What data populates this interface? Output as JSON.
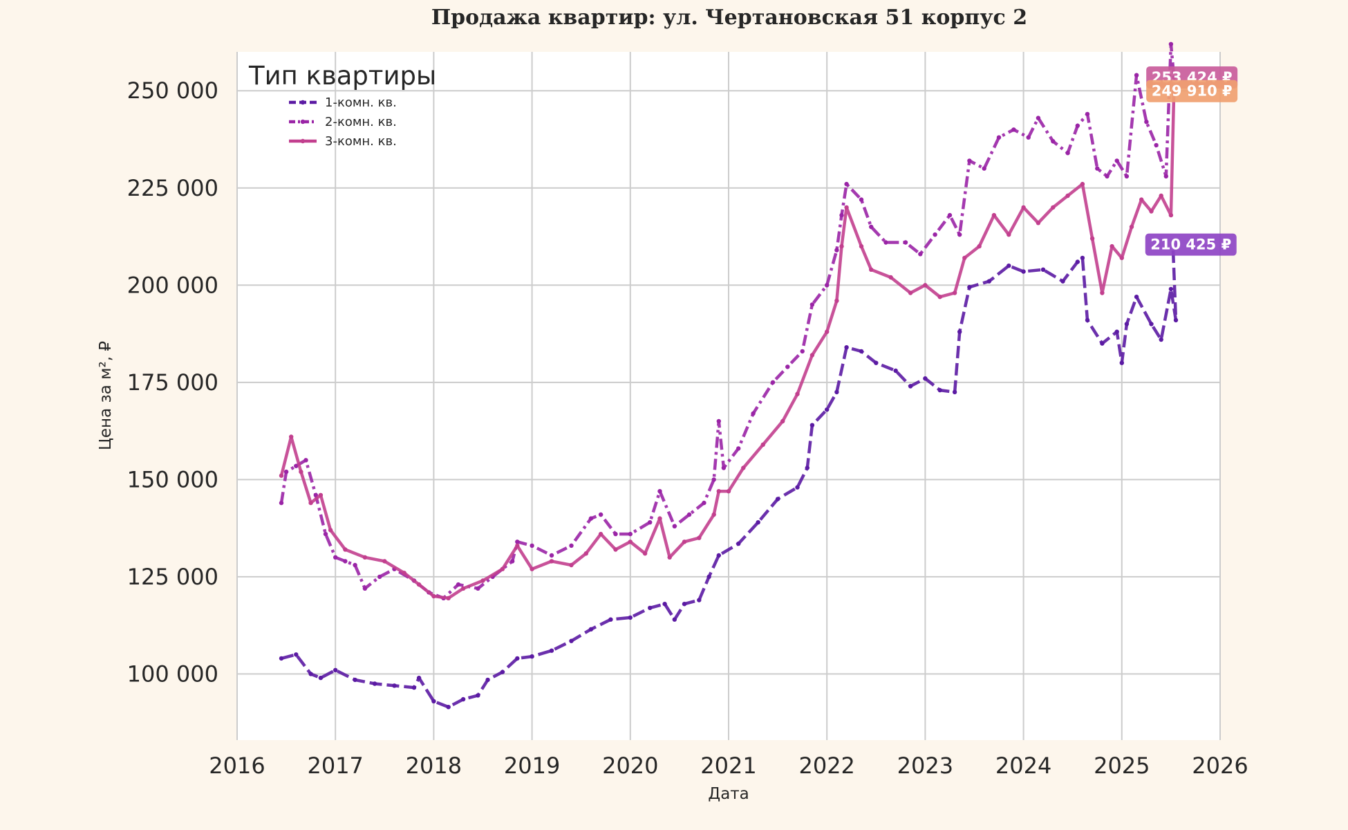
{
  "chart_data": {
    "type": "line",
    "title": "Продажа квартир: ул. Чертановская 51 корпус 2",
    "xlabel": "Дата",
    "ylabel": "Цена за м², ₽",
    "x_ticks": [
      "2016",
      "2017",
      "2018",
      "2019",
      "2020",
      "2021",
      "2022",
      "2023",
      "2024",
      "2025",
      "2026"
    ],
    "y_ticks": [
      "100 000",
      "125 000",
      "150 000",
      "175 000",
      "200 000",
      "225 000",
      "250 000"
    ],
    "xlim": [
      2016.0,
      2026.0
    ],
    "ylim": [
      83000,
      260000
    ],
    "grid": true,
    "legend_title": "Тип квартиры",
    "legend_position": "top-left",
    "series": [
      {
        "name": "1-комн. кв.",
        "color": "#5b1aa3",
        "style": "dashed",
        "end_label": "210 425 ₽",
        "end_label_color": "#8e44c4",
        "points": [
          [
            2016.45,
            104000
          ],
          [
            2016.6,
            105000
          ],
          [
            2016.75,
            100000
          ],
          [
            2016.85,
            99000
          ],
          [
            2017.0,
            101000
          ],
          [
            2017.2,
            98500
          ],
          [
            2017.4,
            97500
          ],
          [
            2017.6,
            97000
          ],
          [
            2017.8,
            96500
          ],
          [
            2017.85,
            99000
          ],
          [
            2018.0,
            93000
          ],
          [
            2018.15,
            91500
          ],
          [
            2018.3,
            93500
          ],
          [
            2018.45,
            94500
          ],
          [
            2018.55,
            98500
          ],
          [
            2018.7,
            100500
          ],
          [
            2018.85,
            104000
          ],
          [
            2019.0,
            104500
          ],
          [
            2019.2,
            106000
          ],
          [
            2019.4,
            108500
          ],
          [
            2019.6,
            111500
          ],
          [
            2019.8,
            114000
          ],
          [
            2020.0,
            114500
          ],
          [
            2020.2,
            117000
          ],
          [
            2020.35,
            118000
          ],
          [
            2020.45,
            114000
          ],
          [
            2020.55,
            118000
          ],
          [
            2020.7,
            119000
          ],
          [
            2020.8,
            125000
          ],
          [
            2020.9,
            130500
          ],
          [
            2021.1,
            133500
          ],
          [
            2021.3,
            139000
          ],
          [
            2021.5,
            145000
          ],
          [
            2021.7,
            148000
          ],
          [
            2021.8,
            153000
          ],
          [
            2021.85,
            164000
          ],
          [
            2022.0,
            168000
          ],
          [
            2022.1,
            172500
          ],
          [
            2022.2,
            184000
          ],
          [
            2022.35,
            183000
          ],
          [
            2022.5,
            180000
          ],
          [
            2022.7,
            178000
          ],
          [
            2022.85,
            174000
          ],
          [
            2023.0,
            176000
          ],
          [
            2023.15,
            173000
          ],
          [
            2023.3,
            172500
          ],
          [
            2023.35,
            188000
          ],
          [
            2023.45,
            199500
          ],
          [
            2023.65,
            201000
          ],
          [
            2023.85,
            205000
          ],
          [
            2024.0,
            203500
          ],
          [
            2024.2,
            204000
          ],
          [
            2024.4,
            201000
          ],
          [
            2024.55,
            206000
          ],
          [
            2024.6,
            207000
          ],
          [
            2024.65,
            191000
          ],
          [
            2024.8,
            185000
          ],
          [
            2024.95,
            188000
          ],
          [
            2025.0,
            180000
          ],
          [
            2025.05,
            190000
          ],
          [
            2025.15,
            197000
          ],
          [
            2025.3,
            190000
          ],
          [
            2025.4,
            186000
          ],
          [
            2025.5,
            199000
          ],
          [
            2025.55,
            191000
          ],
          [
            2025.52,
            210425
          ]
        ]
      },
      {
        "name": "2-комн. кв.",
        "color": "#9a24a6",
        "style": "dashdot",
        "end_label": "253 424 ₽",
        "end_label_color": "#c95c9b",
        "points": [
          [
            2016.45,
            144000
          ],
          [
            2016.5,
            152000
          ],
          [
            2016.6,
            153500
          ],
          [
            2016.7,
            155000
          ],
          [
            2016.8,
            146000
          ],
          [
            2016.9,
            136000
          ],
          [
            2017.0,
            130000
          ],
          [
            2017.1,
            129000
          ],
          [
            2017.2,
            128000
          ],
          [
            2017.3,
            122000
          ],
          [
            2017.45,
            125000
          ],
          [
            2017.6,
            127000
          ],
          [
            2017.8,
            124000
          ],
          [
            2017.95,
            121000
          ],
          [
            2018.1,
            119500
          ],
          [
            2018.25,
            123000
          ],
          [
            2018.45,
            122000
          ],
          [
            2018.6,
            125000
          ],
          [
            2018.8,
            129000
          ],
          [
            2018.85,
            134000
          ],
          [
            2019.0,
            133000
          ],
          [
            2019.2,
            130500
          ],
          [
            2019.4,
            133000
          ],
          [
            2019.6,
            140000
          ],
          [
            2019.7,
            141000
          ],
          [
            2019.85,
            136000
          ],
          [
            2020.0,
            136000
          ],
          [
            2020.2,
            139000
          ],
          [
            2020.3,
            147000
          ],
          [
            2020.45,
            138000
          ],
          [
            2020.6,
            141000
          ],
          [
            2020.75,
            144000
          ],
          [
            2020.85,
            150000
          ],
          [
            2020.9,
            165000
          ],
          [
            2020.95,
            153000
          ],
          [
            2021.1,
            158000
          ],
          [
            2021.25,
            167000
          ],
          [
            2021.45,
            175000
          ],
          [
            2021.6,
            179000
          ],
          [
            2021.75,
            183000
          ],
          [
            2021.85,
            195000
          ],
          [
            2022.0,
            200000
          ],
          [
            2022.1,
            209000
          ],
          [
            2022.15,
            218000
          ],
          [
            2022.2,
            226000
          ],
          [
            2022.35,
            222000
          ],
          [
            2022.45,
            215000
          ],
          [
            2022.6,
            211000
          ],
          [
            2022.8,
            211000
          ],
          [
            2022.95,
            208000
          ],
          [
            2023.1,
            213000
          ],
          [
            2023.25,
            218000
          ],
          [
            2023.35,
            213000
          ],
          [
            2023.45,
            232000
          ],
          [
            2023.6,
            230000
          ],
          [
            2023.75,
            238000
          ],
          [
            2023.9,
            240000
          ],
          [
            2024.05,
            238000
          ],
          [
            2024.15,
            243000
          ],
          [
            2024.3,
            237000
          ],
          [
            2024.45,
            234000
          ],
          [
            2024.55,
            241000
          ],
          [
            2024.65,
            244000
          ],
          [
            2024.75,
            230000
          ],
          [
            2024.85,
            228000
          ],
          [
            2024.95,
            232000
          ],
          [
            2025.05,
            228000
          ],
          [
            2025.15,
            254000
          ],
          [
            2025.25,
            242000
          ],
          [
            2025.35,
            236000
          ],
          [
            2025.45,
            228000
          ],
          [
            2025.5,
            262000
          ],
          [
            2025.53,
            253424
          ]
        ]
      },
      {
        "name": "3-комн. кв.",
        "color": "#c23f8e",
        "style": "solid",
        "end_label": "249 910 ₽",
        "end_label_color": "#f0a070",
        "points": [
          [
            2016.45,
            151000
          ],
          [
            2016.55,
            161000
          ],
          [
            2016.65,
            152000
          ],
          [
            2016.75,
            144000
          ],
          [
            2016.85,
            146000
          ],
          [
            2016.95,
            137000
          ],
          [
            2017.1,
            132000
          ],
          [
            2017.3,
            130000
          ],
          [
            2017.5,
            129000
          ],
          [
            2017.7,
            126000
          ],
          [
            2017.85,
            123000
          ],
          [
            2018.0,
            120000
          ],
          [
            2018.15,
            119500
          ],
          [
            2018.3,
            122000
          ],
          [
            2018.5,
            124000
          ],
          [
            2018.7,
            127000
          ],
          [
            2018.85,
            133000
          ],
          [
            2019.0,
            127000
          ],
          [
            2019.2,
            129000
          ],
          [
            2019.4,
            128000
          ],
          [
            2019.55,
            131000
          ],
          [
            2019.7,
            136000
          ],
          [
            2019.85,
            132000
          ],
          [
            2020.0,
            134000
          ],
          [
            2020.15,
            131000
          ],
          [
            2020.3,
            140000
          ],
          [
            2020.4,
            130000
          ],
          [
            2020.55,
            134000
          ],
          [
            2020.7,
            135000
          ],
          [
            2020.85,
            141000
          ],
          [
            2020.9,
            147000
          ],
          [
            2021.0,
            147000
          ],
          [
            2021.15,
            153000
          ],
          [
            2021.35,
            159000
          ],
          [
            2021.55,
            165000
          ],
          [
            2021.7,
            172000
          ],
          [
            2021.85,
            182000
          ],
          [
            2022.0,
            188000
          ],
          [
            2022.1,
            196000
          ],
          [
            2022.15,
            210000
          ],
          [
            2022.2,
            220000
          ],
          [
            2022.35,
            210000
          ],
          [
            2022.45,
            204000
          ],
          [
            2022.65,
            202000
          ],
          [
            2022.85,
            198000
          ],
          [
            2023.0,
            200000
          ],
          [
            2023.15,
            197000
          ],
          [
            2023.3,
            198000
          ],
          [
            2023.4,
            207000
          ],
          [
            2023.55,
            210000
          ],
          [
            2023.7,
            218000
          ],
          [
            2023.85,
            213000
          ],
          [
            2024.0,
            220000
          ],
          [
            2024.15,
            216000
          ],
          [
            2024.3,
            220000
          ],
          [
            2024.45,
            223000
          ],
          [
            2024.6,
            226000
          ],
          [
            2024.7,
            212000
          ],
          [
            2024.8,
            198000
          ],
          [
            2024.9,
            210000
          ],
          [
            2025.0,
            207000
          ],
          [
            2025.1,
            215000
          ],
          [
            2025.2,
            222000
          ],
          [
            2025.3,
            219000
          ],
          [
            2025.4,
            223000
          ],
          [
            2025.5,
            218000
          ],
          [
            2025.53,
            249910
          ]
        ]
      }
    ]
  }
}
